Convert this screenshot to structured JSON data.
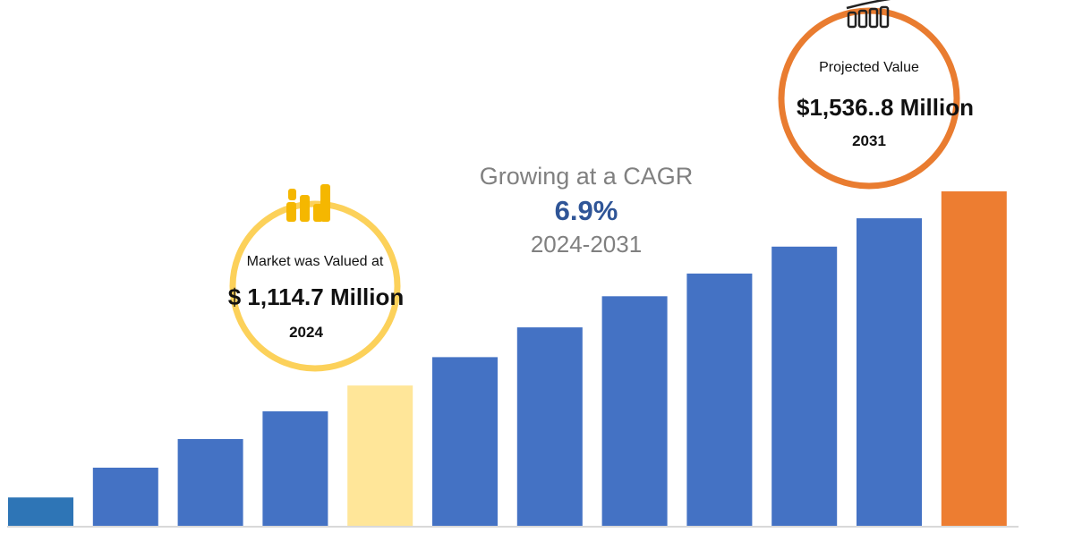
{
  "chart_data": {
    "type": "bar",
    "categories": [
      "",
      "",
      "",
      "",
      "",
      "",
      "",
      "",
      "",
      "",
      "",
      ""
    ],
    "values": [
      100,
      205,
      306,
      404,
      495,
      595,
      700,
      810,
      890,
      985,
      1085,
      1180
    ],
    "bar_colors": [
      "#2e75b6",
      "#4472c4",
      "#4472c4",
      "#4472c4",
      "#ffe699",
      "#4472c4",
      "#4472c4",
      "#4472c4",
      "#4472c4",
      "#4472c4",
      "#4472c4",
      "#ed7d31"
    ],
    "ylim": [
      0,
      1180
    ],
    "baseline_color": "#d9d9d9"
  },
  "callouts": {
    "start": {
      "label": "Market was Valued at",
      "value": "$ 1,114.7 Million",
      "year": "2024",
      "ring_color": "#fcd15a",
      "icon": "bar-chart-icon",
      "icon_color": "#f5b700"
    },
    "end": {
      "label": "Projected Value",
      "value": "$1,536..8 Million",
      "year": "2031",
      "ring_color": "#e97c30",
      "icon": "growth-bars-icon",
      "icon_color": "#222222"
    }
  },
  "cagr": {
    "line1": "Growing at a CAGR",
    "rate": "6.9%",
    "period": "2024-2031"
  }
}
